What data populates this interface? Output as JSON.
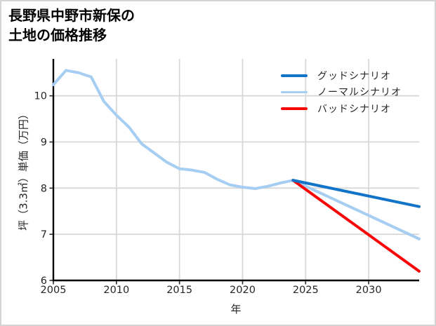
{
  "chart_data": {
    "type": "line",
    "title": "長野県中野市新保の\n土地の価格推移",
    "xlabel": "年",
    "ylabel": "坪（3.3㎡）単価（万円）",
    "xlim": [
      2005,
      2034
    ],
    "ylim": [
      6,
      10.8
    ],
    "xticks": [
      2005,
      2010,
      2015,
      2020,
      2025,
      2030
    ],
    "yticks": [
      6,
      7,
      8,
      9,
      10
    ],
    "grid": true,
    "legend_position": "upper right",
    "colors": {
      "grid": "#d8d8d8",
      "axis": "#000000",
      "tick_text": "#262626",
      "good": "#1274c8",
      "normal": "#a6cdf2",
      "bad": "#f90606"
    },
    "series": [
      {
        "name": "history",
        "color": "#a6cdf2",
        "x": [
          2005,
          2006,
          2007,
          2008,
          2009,
          2010,
          2011,
          2012,
          2013,
          2014,
          2015,
          2016,
          2017,
          2018,
          2019,
          2020,
          2021,
          2022,
          2023,
          2024
        ],
        "values": [
          10.24,
          10.55,
          10.5,
          10.41,
          9.88,
          9.58,
          9.32,
          8.96,
          8.76,
          8.56,
          8.42,
          8.39,
          8.34,
          8.19,
          8.07,
          8.02,
          7.99,
          8.04,
          8.11,
          8.17
        ]
      },
      {
        "name": "ノーマルシナリオ",
        "color": "#a6cdf2",
        "x": [
          2024,
          2034
        ],
        "values": [
          8.17,
          6.9
        ]
      },
      {
        "name": "バッドシナリオ",
        "color": "#f90606",
        "x": [
          2024,
          2034
        ],
        "values": [
          8.17,
          6.2
        ]
      },
      {
        "name": "グッドシナリオ",
        "color": "#1274c8",
        "x": [
          2024,
          2034
        ],
        "values": [
          8.17,
          7.6
        ]
      }
    ],
    "legend": [
      {
        "label": "グッドシナリオ",
        "color": "#1274c8"
      },
      {
        "label": "ノーマルシナリオ",
        "color": "#a6cdf2"
      },
      {
        "label": "バッドシナリオ",
        "color": "#f90606"
      }
    ]
  }
}
